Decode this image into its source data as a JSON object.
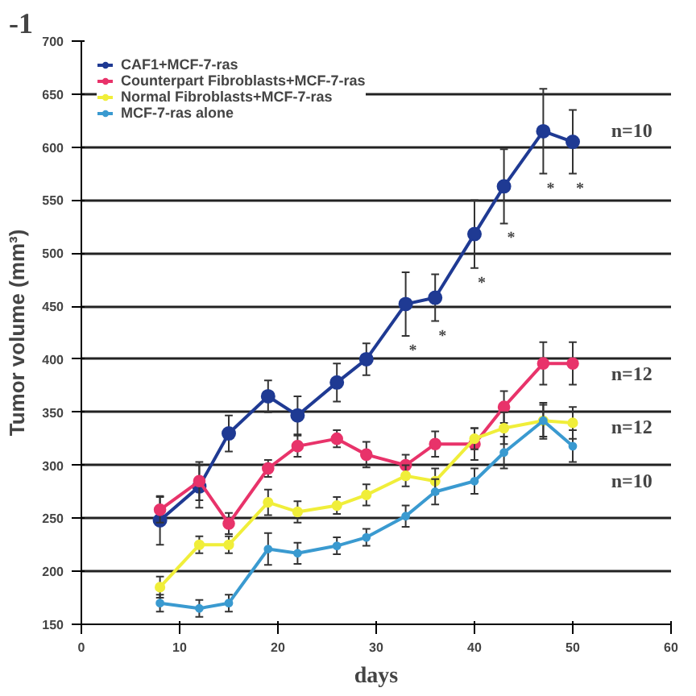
{
  "chart_data": {
    "type": "line",
    "xlabel": "days",
    "ylabel": "Tumor volume (mm³)",
    "x": [
      8,
      12,
      15,
      19,
      22,
      26,
      29,
      33,
      36,
      40,
      43,
      47,
      50
    ],
    "series": [
      {
        "name": "CAF1+MCF-7-ras",
        "color": "#1f3a93",
        "values": [
          248,
          280,
          330,
          365,
          347,
          378,
          400,
          452,
          458,
          518,
          563,
          615,
          605
        ],
        "errors": [
          23,
          20,
          17,
          15,
          18,
          18,
          15,
          30,
          22,
          32,
          35,
          40,
          30
        ]
      },
      {
        "name": "Counterpart Fibroblasts+MCF-7-ras",
        "color": "#e8336a",
        "values": [
          258,
          285,
          245,
          297,
          318,
          325,
          310,
          300,
          320,
          320,
          355,
          396,
          396
        ],
        "errors": [
          12,
          18,
          10,
          8,
          10,
          8,
          12,
          10,
          12,
          15,
          15,
          20,
          20
        ]
      },
      {
        "name": "Normal Fibroblasts+MCF-7-ras",
        "color": "#f0ee3a",
        "values": [
          185,
          225,
          225,
          265,
          256,
          262,
          272,
          290,
          285,
          325,
          335,
          342,
          340
        ],
        "errors": [
          10,
          8,
          8,
          12,
          10,
          8,
          10,
          10,
          12,
          10,
          15,
          15,
          15
        ]
      },
      {
        "name": "MCF-7-ras alone",
        "color": "#3a9ad0",
        "values": [
          170,
          165,
          170,
          221,
          217,
          224,
          232,
          252,
          275,
          285,
          312,
          342,
          318
        ],
        "errors": [
          8,
          8,
          8,
          15,
          10,
          8,
          8,
          10,
          12,
          12,
          15,
          17,
          15
        ]
      }
    ],
    "xlim": [
      0,
      60
    ],
    "xticks": [
      0,
      10,
      20,
      30,
      40,
      50,
      60
    ],
    "ylim": [
      150,
      700
    ],
    "yticks": [
      150,
      200,
      250,
      300,
      350,
      400,
      450,
      500,
      550,
      600,
      650,
      700
    ],
    "grid": "y",
    "legend": "top left",
    "marker": "circle",
    "line_style": "solid",
    "annotations": [
      "-1",
      {
        "text": "n=10",
        "x": 56,
        "y": 616
      },
      {
        "text": "n=12",
        "x": 56,
        "y": 386
      },
      {
        "text": "n=12",
        "x": 56,
        "y": 336
      },
      {
        "text": "n=10",
        "x": 56,
        "y": 285
      },
      {
        "text": "*",
        "x": 33,
        "y": 422
      },
      {
        "text": "*",
        "x": 36,
        "y": 436
      },
      {
        "text": "*",
        "x": 40,
        "y": 486
      },
      {
        "text": "*",
        "x": 43,
        "y": 528
      },
      {
        "text": "*",
        "x": 47,
        "y": 575
      },
      {
        "text": "*",
        "x": 50,
        "y": 575
      }
    ]
  }
}
